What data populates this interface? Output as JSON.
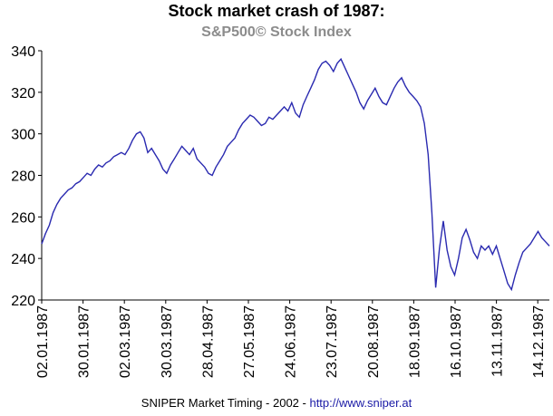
{
  "chart_data": {
    "type": "line",
    "title": "Stock market crash of 1987:",
    "subtitle": "S&P500© Stock Index",
    "footer_text": "SNIPER Market Timing - 2002 - ",
    "footer_url": "http://www.sniper.at",
    "y_ticks": [
      220,
      240,
      260,
      280,
      300,
      320,
      340
    ],
    "ylim": [
      220,
      340
    ],
    "x_ticks": [
      "02.01.1987",
      "30.01.1987",
      "02.03.1987",
      "30.03.1987",
      "28.04.1987",
      "27.05.1987",
      "24.06.1987",
      "23.07.1987",
      "20.08.1987",
      "18.09.1987",
      "16.10.1987",
      "13.11.1987",
      "14.12.1987"
    ],
    "grid": false,
    "line_color": "#2a2ab0",
    "series": [
      {
        "values": [
          247,
          252,
          256,
          262,
          266,
          269,
          271,
          273,
          274,
          276,
          277,
          279,
          281,
          280,
          283,
          285,
          284,
          286,
          287,
          289,
          290,
          291,
          290,
          293,
          297,
          300,
          301,
          298,
          291,
          293,
          290,
          287,
          283,
          281,
          285,
          288,
          291,
          294,
          292,
          290,
          293,
          288,
          286,
          284,
          281,
          280,
          284,
          287,
          290,
          294,
          296,
          298,
          302,
          305,
          307,
          309,
          308,
          306,
          304,
          305,
          308,
          307,
          309,
          311,
          313,
          311,
          315,
          310,
          308,
          314,
          318,
          322,
          326,
          331,
          334,
          335,
          333,
          330,
          334,
          336,
          332,
          328,
          324,
          320,
          315,
          312,
          316,
          319,
          322,
          318,
          315,
          314,
          318,
          322,
          325,
          327,
          323,
          320,
          318,
          316,
          313,
          305,
          290,
          262,
          226,
          245,
          258,
          244,
          236,
          232,
          240,
          250,
          254,
          249,
          243,
          240,
          246,
          244,
          246,
          242,
          246,
          240,
          234,
          228,
          225,
          232,
          238,
          243,
          245,
          247,
          250,
          253,
          250,
          248,
          246
        ]
      }
    ]
  }
}
